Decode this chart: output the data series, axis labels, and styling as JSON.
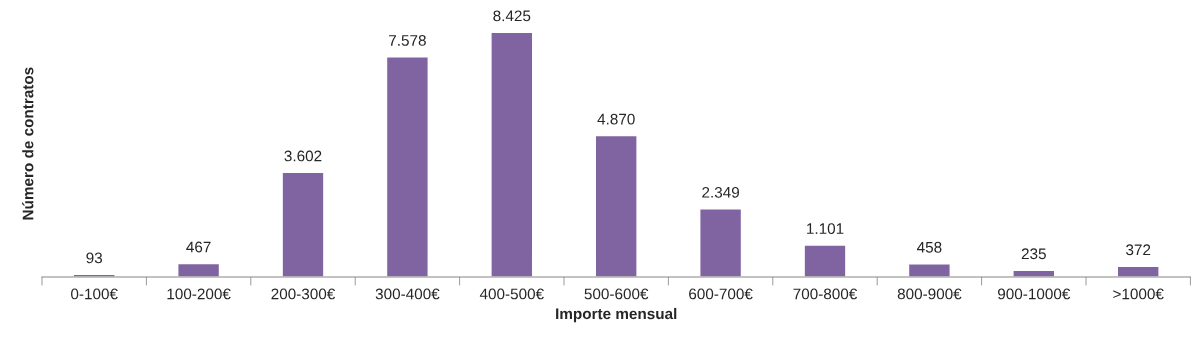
{
  "chart_data": {
    "type": "bar",
    "xlabel": "Importe mensual",
    "ylabel": "Número de contratos",
    "categories": [
      "0-100€",
      "100-200€",
      "200-300€",
      "300-400€",
      "400-500€",
      "500-600€",
      "600-700€",
      "700-800€",
      "800-900€",
      "900-1000€",
      ">1000€"
    ],
    "values": [
      93,
      467,
      3602,
      7578,
      8425,
      4870,
      2349,
      1101,
      458,
      235,
      372
    ],
    "value_labels": [
      "93",
      "467",
      "3.602",
      "7.578",
      "8.425",
      "4.870",
      "2.349",
      "1.101",
      "458",
      "235",
      "372"
    ],
    "color": "#8064a2",
    "grid": false,
    "legend": false
  }
}
